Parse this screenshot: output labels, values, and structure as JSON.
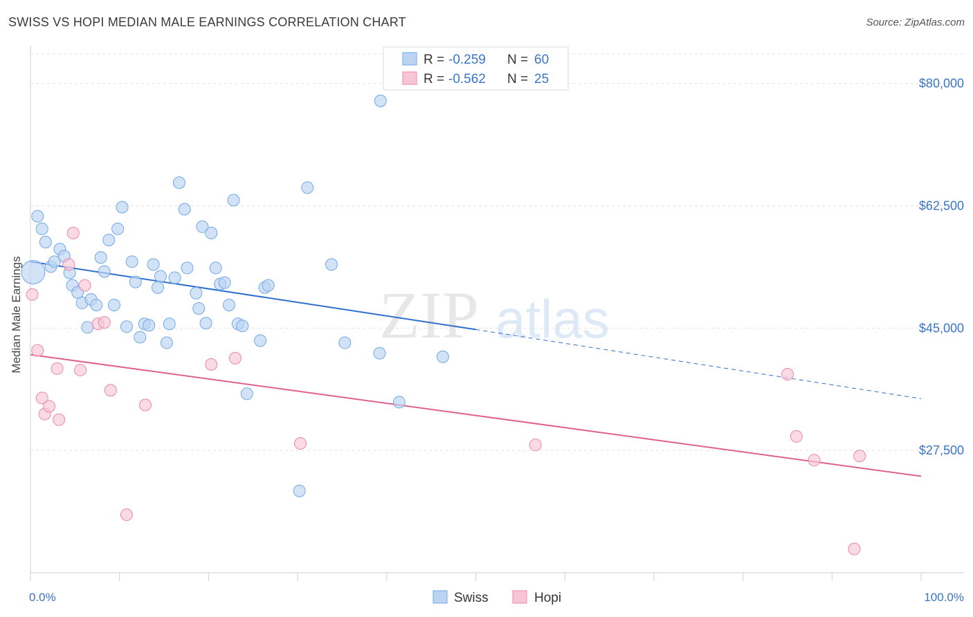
{
  "header": {
    "title": "SWISS VS HOPI MEDIAN MALE EARNINGS CORRELATION CHART",
    "source": "Source: ZipAtlas.com"
  },
  "watermark": {
    "zip": "ZIP",
    "atlas": "atlas"
  },
  "chart_data": {
    "type": "scatter",
    "title": "SWISS VS HOPI MEDIAN MALE EARNINGS CORRELATION CHART",
    "xlabel": "",
    "ylabel": "Median Male Earnings",
    "xlim": [
      0,
      100
    ],
    "ylim": [
      10000,
      86000
    ],
    "x_tick_labels": {
      "left": "0.0%",
      "right": "100.0%"
    },
    "y_ticks": [
      {
        "value": 80000,
        "label": "$80,000"
      },
      {
        "value": 62500,
        "label": "$62,500"
      },
      {
        "value": 45000,
        "label": "$45,000"
      },
      {
        "value": 27500,
        "label": "$27,500"
      }
    ],
    "grid": true,
    "legend": [
      {
        "name": "Swiss",
        "color": "#6fa8e8",
        "fill": "#bcd4f2",
        "r_label": "R =",
        "r_value": "-0.259",
        "n_label": "N =",
        "n_value": "60"
      },
      {
        "name": "Hopi",
        "color": "#ec86a9",
        "fill": "#f7c6d6",
        "r_label": "R =",
        "r_value": "-0.562",
        "n_label": "N =",
        "n_value": "25"
      }
    ],
    "series": [
      {
        "name": "Swiss",
        "color": "#6fa8e8",
        "points": [
          {
            "x": 0.3,
            "y": 53000,
            "big": true
          },
          {
            "x": 0.8,
            "y": 61000
          },
          {
            "x": 1.3,
            "y": 59200
          },
          {
            "x": 1.7,
            "y": 57300
          },
          {
            "x": 2.3,
            "y": 53800
          },
          {
            "x": 2.7,
            "y": 54500
          },
          {
            "x": 3.3,
            "y": 56300
          },
          {
            "x": 3.8,
            "y": 55300
          },
          {
            "x": 4.4,
            "y": 52900
          },
          {
            "x": 4.7,
            "y": 51100
          },
          {
            "x": 5.3,
            "y": 50100
          },
          {
            "x": 5.8,
            "y": 48600
          },
          {
            "x": 6.4,
            "y": 45100
          },
          {
            "x": 6.8,
            "y": 49100
          },
          {
            "x": 7.4,
            "y": 48300
          },
          {
            "x": 7.9,
            "y": 55100
          },
          {
            "x": 8.3,
            "y": 53100
          },
          {
            "x": 8.8,
            "y": 57600
          },
          {
            "x": 9.4,
            "y": 48300
          },
          {
            "x": 9.8,
            "y": 59200
          },
          {
            "x": 10.3,
            "y": 62300
          },
          {
            "x": 10.8,
            "y": 45200
          },
          {
            "x": 11.4,
            "y": 54500
          },
          {
            "x": 11.8,
            "y": 51600
          },
          {
            "x": 12.3,
            "y": 43700
          },
          {
            "x": 12.8,
            "y": 45600
          },
          {
            "x": 13.3,
            "y": 45400
          },
          {
            "x": 13.8,
            "y": 54100
          },
          {
            "x": 14.3,
            "y": 50800
          },
          {
            "x": 14.6,
            "y": 52400
          },
          {
            "x": 15.3,
            "y": 42900
          },
          {
            "x": 15.6,
            "y": 45600
          },
          {
            "x": 16.2,
            "y": 52200
          },
          {
            "x": 16.7,
            "y": 65800
          },
          {
            "x": 17.3,
            "y": 62000
          },
          {
            "x": 17.6,
            "y": 53600
          },
          {
            "x": 18.6,
            "y": 50000
          },
          {
            "x": 18.9,
            "y": 47800
          },
          {
            "x": 19.3,
            "y": 59500
          },
          {
            "x": 19.7,
            "y": 45700
          },
          {
            "x": 20.3,
            "y": 58600
          },
          {
            "x": 20.8,
            "y": 53600
          },
          {
            "x": 21.3,
            "y": 51300
          },
          {
            "x": 21.8,
            "y": 51500
          },
          {
            "x": 22.3,
            "y": 48300
          },
          {
            "x": 22.8,
            "y": 63300
          },
          {
            "x": 23.3,
            "y": 45600
          },
          {
            "x": 23.8,
            "y": 45300
          },
          {
            "x": 24.3,
            "y": 35600
          },
          {
            "x": 25.8,
            "y": 43200
          },
          {
            "x": 26.3,
            "y": 50800
          },
          {
            "x": 26.7,
            "y": 51100
          },
          {
            "x": 30.2,
            "y": 21700
          },
          {
            "x": 31.1,
            "y": 65100
          },
          {
            "x": 33.8,
            "y": 54100
          },
          {
            "x": 35.3,
            "y": 42900
          },
          {
            "x": 39.2,
            "y": 41400
          },
          {
            "x": 39.3,
            "y": 77500
          },
          {
            "x": 41.4,
            "y": 34400
          },
          {
            "x": 46.3,
            "y": 40900
          }
        ]
      },
      {
        "name": "Hopi",
        "color": "#ec86a9",
        "points": [
          {
            "x": 0.2,
            "y": 49800
          },
          {
            "x": 0.8,
            "y": 41800
          },
          {
            "x": 1.3,
            "y": 35000
          },
          {
            "x": 1.6,
            "y": 32700
          },
          {
            "x": 2.1,
            "y": 33800
          },
          {
            "x": 3.0,
            "y": 39200
          },
          {
            "x": 3.2,
            "y": 31900
          },
          {
            "x": 4.3,
            "y": 54100
          },
          {
            "x": 4.8,
            "y": 58600
          },
          {
            "x": 5.6,
            "y": 39000
          },
          {
            "x": 6.1,
            "y": 51100
          },
          {
            "x": 7.6,
            "y": 45600
          },
          {
            "x": 8.3,
            "y": 45800
          },
          {
            "x": 9.0,
            "y": 36100
          },
          {
            "x": 10.8,
            "y": 18300
          },
          {
            "x": 12.9,
            "y": 34000
          },
          {
            "x": 20.3,
            "y": 39800
          },
          {
            "x": 23.0,
            "y": 40700
          },
          {
            "x": 30.3,
            "y": 28500
          },
          {
            "x": 56.7,
            "y": 28300
          },
          {
            "x": 85.0,
            "y": 38400
          },
          {
            "x": 86.0,
            "y": 29500
          },
          {
            "x": 88.0,
            "y": 26100
          },
          {
            "x": 92.5,
            "y": 13400
          },
          {
            "x": 93.1,
            "y": 26700
          }
        ]
      }
    ],
    "trend_lines": [
      {
        "series": "Swiss",
        "color": "#2d6fce",
        "x0": 0,
        "y0": 54500,
        "x1": 50,
        "y1": 44800,
        "dashed_to_x": 100,
        "dashed_to_y": 34900
      },
      {
        "series": "Hopi",
        "color": "#e0608e",
        "x0": 0,
        "y0": 41200,
        "x1": 100,
        "y1": 23800
      }
    ]
  }
}
